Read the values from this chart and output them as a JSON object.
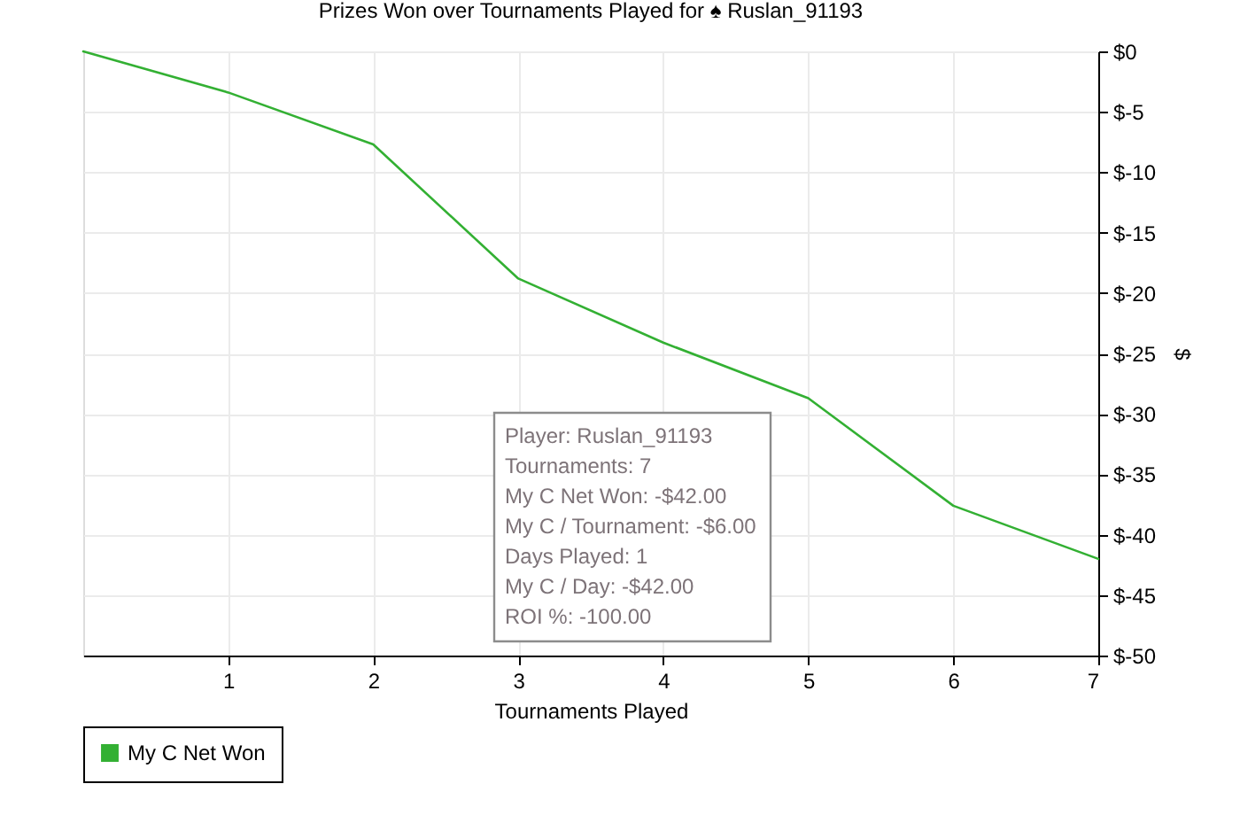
{
  "chart_data": {
    "type": "line",
    "title": "Prizes Won over Tournaments Played for ♠ Ruslan_91193",
    "xlabel": "Tournaments Played",
    "ylabel": "$",
    "x": [
      0,
      1,
      2,
      3,
      4,
      5,
      6,
      7
    ],
    "series": [
      {
        "name": "My C Net Won",
        "color": "#33b033",
        "values": [
          0,
          -3.4,
          -7.7,
          -18.8,
          -24.1,
          -28.7,
          -37.6,
          -42
        ]
      }
    ],
    "xlim": [
      0,
      7
    ],
    "xticks": [
      1,
      2,
      3,
      4,
      5,
      6,
      7
    ],
    "ylim": [
      -50,
      0
    ],
    "yticks": [
      {
        "value": 0,
        "label": "$0"
      },
      {
        "value": -5,
        "label": "$-5"
      },
      {
        "value": -10,
        "label": "$-10"
      },
      {
        "value": -15,
        "label": "$-15"
      },
      {
        "value": -20,
        "label": "$-20"
      },
      {
        "value": -25,
        "label": "$-25"
      },
      {
        "value": -30,
        "label": "$-30"
      },
      {
        "value": -35,
        "label": "$-35"
      },
      {
        "value": -40,
        "label": "$-40"
      },
      {
        "value": -45,
        "label": "$-45"
      },
      {
        "value": -50,
        "label": "$-50"
      }
    ],
    "grid": true,
    "legend": "bottom left",
    "line_style": "solid",
    "annotations": [
      "Player: Ruslan_91193",
      "Tournaments: 7",
      "My C Net Won: -$42.00",
      "My C / Tournament: -$6.00",
      "Days Played: 1",
      "My C / Day: -$42.00",
      "ROI %: -100.00"
    ]
  }
}
